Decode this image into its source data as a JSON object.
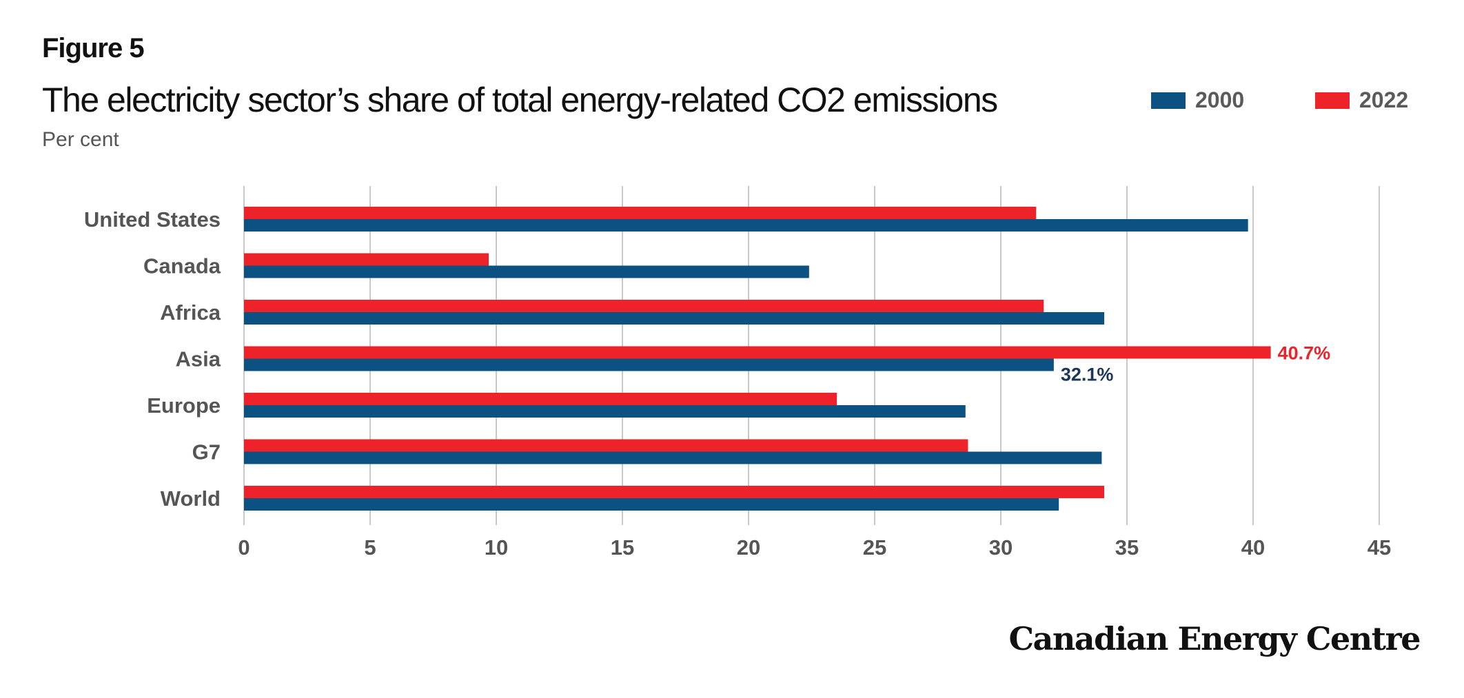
{
  "header": {
    "figure_label": "Figure 5",
    "title": "The electricity sector’s share of total energy-related CO2 emissions",
    "subtitle": "Per cent"
  },
  "legend": [
    {
      "label": "2000",
      "color": "#0b5283"
    },
    {
      "label": "2022",
      "color": "#ee2229"
    }
  ],
  "footer": {
    "brand": "Canadian Energy Centre"
  },
  "chart_data": {
    "type": "bar",
    "orientation": "horizontal",
    "categories": [
      "United States",
      "Canada",
      "Africa",
      "Asia",
      "Europe",
      "G7",
      "World"
    ],
    "series": [
      {
        "name": "2022",
        "color": "#ee2229",
        "values": [
          31.4,
          9.7,
          31.7,
          40.7,
          23.5,
          28.7,
          34.1
        ]
      },
      {
        "name": "2000",
        "color": "#0b5283",
        "values": [
          39.8,
          22.4,
          34.1,
          32.1,
          28.6,
          34.0,
          32.3
        ]
      }
    ],
    "data_labels": [
      {
        "category": "Asia",
        "series": "2022",
        "text": "40.7%",
        "color": "#ee2229"
      },
      {
        "category": "Asia",
        "series": "2000",
        "text": "32.1%",
        "color": "#1d3557"
      }
    ],
    "xlim": [
      0,
      45
    ],
    "xticks": [
      "0",
      "5",
      "10",
      "15",
      "20",
      "25",
      "30",
      "35",
      "40",
      "45"
    ],
    "grid": true,
    "legend_position": "top-right"
  }
}
